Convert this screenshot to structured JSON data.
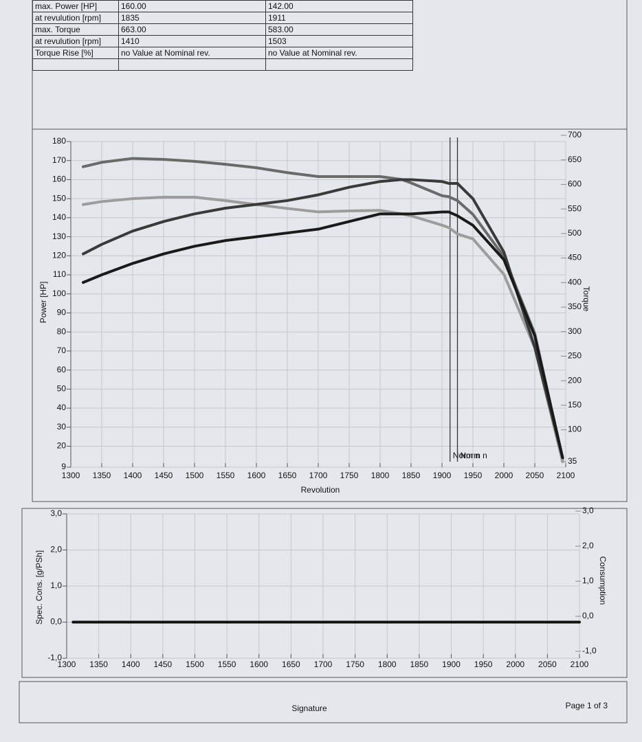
{
  "table": {
    "rows": [
      [
        "max. Power [HP]",
        "160.00",
        "142.00"
      ],
      [
        "at revulution [rpm]",
        "1835",
        "1911"
      ],
      [
        "max. Torque",
        "663.00",
        "583.00"
      ],
      [
        "at revulution [rpm]",
        "1410",
        "1503"
      ],
      [
        "Torque Rise [%]",
        "no Value at Nominal rev.",
        "no Value at Nominal rev."
      ]
    ]
  },
  "chart_data": [
    {
      "type": "line",
      "xlabel": "Revolution",
      "ylabel": "Power [HP]",
      "y2label": "Torque",
      "x": [
        1320,
        1350,
        1400,
        1450,
        1500,
        1550,
        1600,
        1650,
        1700,
        1750,
        1800,
        1835,
        1850,
        1900,
        1911,
        1925,
        1950,
        2000,
        2050,
        2095
      ],
      "series": [
        {
          "color": "#6a6a6a",
          "axis": "y2",
          "values": [
            636,
            645,
            653,
            651,
            647,
            641,
            634,
            624,
            616,
            616,
            616,
            610,
            603,
            577,
            575,
            567,
            539,
            453,
            296,
            40
          ]
        },
        {
          "color": "#9c9c9c",
          "axis": "y2",
          "values": [
            559,
            565,
            571,
            574,
            574,
            567,
            559,
            551,
            544,
            546,
            547,
            540,
            536,
            517,
            512,
            499,
            489,
            417,
            267,
            35
          ]
        },
        {
          "color": "#3a3a3a",
          "values": [
            121,
            126,
            133,
            138,
            142,
            145,
            147,
            149,
            152,
            156,
            159,
            160,
            160,
            159,
            158,
            158,
            150,
            122,
            72,
            14
          ]
        },
        {
          "color": "#1a1a1a",
          "values": [
            106,
            110,
            116,
            121,
            125,
            128,
            130,
            132,
            134,
            138,
            142,
            142,
            142,
            143,
            143,
            141,
            136,
            118,
            78,
            14
          ]
        }
      ],
      "markers": [
        {
          "x": 1913,
          "label": "Norm n"
        },
        {
          "x": 1925,
          "label": "Norm n"
        }
      ],
      "xlim": [
        1300,
        2100
      ],
      "xticks": [
        1300,
        1350,
        1400,
        1450,
        1500,
        1550,
        1600,
        1650,
        1700,
        1750,
        1800,
        1850,
        1900,
        1950,
        2000,
        2050,
        2100
      ],
      "ylim": [
        9,
        180
      ],
      "yticks": [
        9,
        20,
        30,
        40,
        50,
        60,
        70,
        80,
        90,
        100,
        110,
        120,
        130,
        140,
        150,
        160,
        170,
        180
      ],
      "y2lim": [
        35,
        700
      ],
      "y2ticks": [
        35,
        100,
        150,
        200,
        250,
        300,
        350,
        400,
        450,
        500,
        550,
        600,
        650,
        700
      ],
      "grid": true
    },
    {
      "type": "line",
      "ylabel": "Spec. Cons. [g/PSh]",
      "y2label": "Consumption",
      "x": [
        1310,
        2100
      ],
      "series": [
        {
          "color": "#111111",
          "values": [
            0,
            0
          ]
        }
      ],
      "xlim": [
        1300,
        2100
      ],
      "xticks": [
        1300,
        1350,
        1400,
        1450,
        1500,
        1550,
        1600,
        1650,
        1700,
        1750,
        1800,
        1850,
        1900,
        1950,
        2000,
        2050,
        2100
      ],
      "ylim": [
        -1,
        3
      ],
      "yticks": [
        {
          "value": -1,
          "label": "-1,0"
        },
        {
          "value": 0,
          "label": "0,0"
        },
        {
          "value": 1,
          "label": "1,0"
        },
        {
          "value": 2,
          "label": "2,0"
        },
        {
          "value": 3,
          "label": "3,0"
        }
      ],
      "y2lim": [
        -1,
        3
      ],
      "y2ticks": [
        {
          "value": -1,
          "label": "-1,0"
        },
        {
          "value": 0,
          "label": "0,0"
        },
        {
          "value": 1,
          "label": "1,0"
        },
        {
          "value": 2,
          "label": "2,0"
        },
        {
          "value": 3,
          "label": "3,0"
        }
      ],
      "grid": true
    }
  ],
  "footer": {
    "signature": "Signature",
    "page": "Page 1 of 3"
  }
}
